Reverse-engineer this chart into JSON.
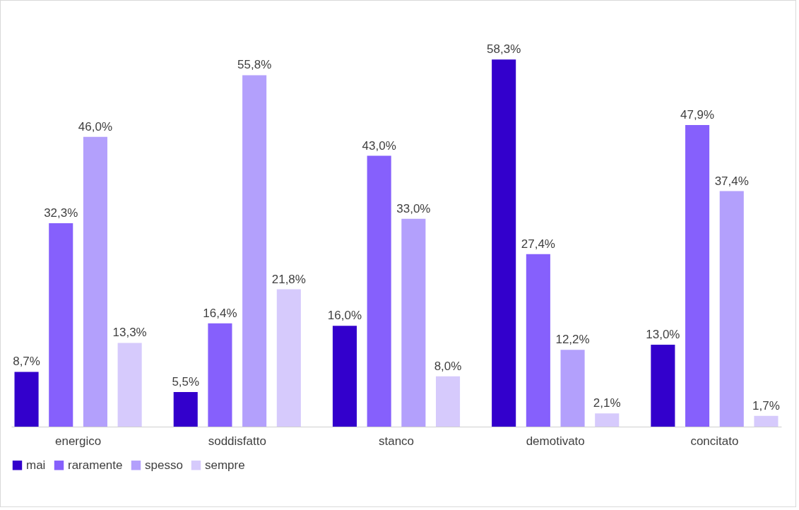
{
  "chart_data": {
    "type": "bar",
    "categories": [
      "energico",
      "soddisfatto",
      "stanco",
      "demotivato",
      "concitato"
    ],
    "series": [
      {
        "name": "mai",
        "color": "#3300cc",
        "values": [
          8.7,
          5.5,
          16.0,
          58.3,
          13.0
        ],
        "value_labels": [
          "8,7%",
          "5,5%",
          "16,0%",
          "58,3%",
          "13,0%"
        ]
      },
      {
        "name": "raramente",
        "color": "#8660fc",
        "values": [
          32.3,
          16.4,
          43.0,
          27.4,
          47.9
        ],
        "value_labels": [
          "32,3%",
          "16,4%",
          "43,0%",
          "27,4%",
          "47,9%"
        ]
      },
      {
        "name": "spesso",
        "color": "#b3a0fc",
        "values": [
          46.0,
          55.8,
          33.0,
          12.2,
          37.4
        ],
        "value_labels": [
          "46,0%",
          "55,8%",
          "33,0%",
          "12,2%",
          "37,4%"
        ]
      },
      {
        "name": "sempre",
        "color": "#d6cafc",
        "values": [
          13.3,
          21.8,
          8.0,
          2.1,
          1.7
        ],
        "value_labels": [
          "13,3%",
          "21,8%",
          "8,0%",
          "2,1%",
          "1,7%"
        ]
      }
    ],
    "legend": "bottom"
  }
}
